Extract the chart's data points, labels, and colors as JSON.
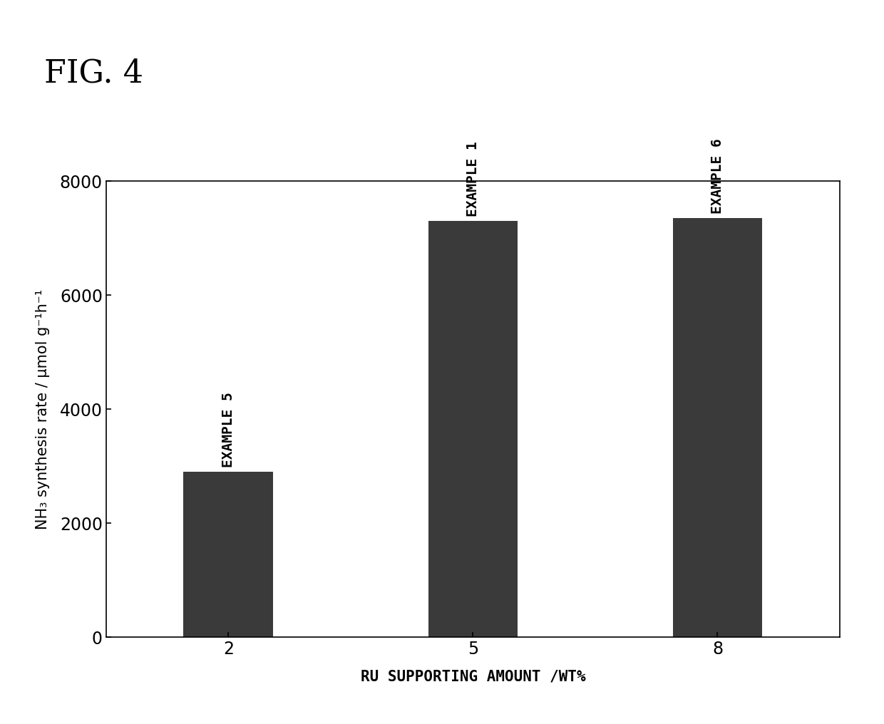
{
  "title": "FIG. 4",
  "categories": [
    2,
    5,
    8
  ],
  "values": [
    2900,
    7300,
    7350
  ],
  "bar_labels": [
    "EXAMPLE 5",
    "EXAMPLE 1",
    "EXAMPLE 6"
  ],
  "bar_color": "#3a3a3a",
  "xlabel": "RU SUPPORTING AMOUNT /WT%",
  "ylabel": "NH₃ synthesis rate / μmol g⁻¹h⁻¹",
  "ylim": [
    0,
    8000
  ],
  "yticks": [
    0,
    2000,
    4000,
    6000,
    8000
  ],
  "xticks": [
    2,
    5,
    8
  ],
  "background_color": "#ffffff",
  "fig_label_fontsize": 32,
  "axis_label_fontsize": 15,
  "tick_fontsize": 17,
  "bar_label_fontsize": 14,
  "bar_width": 1.1
}
